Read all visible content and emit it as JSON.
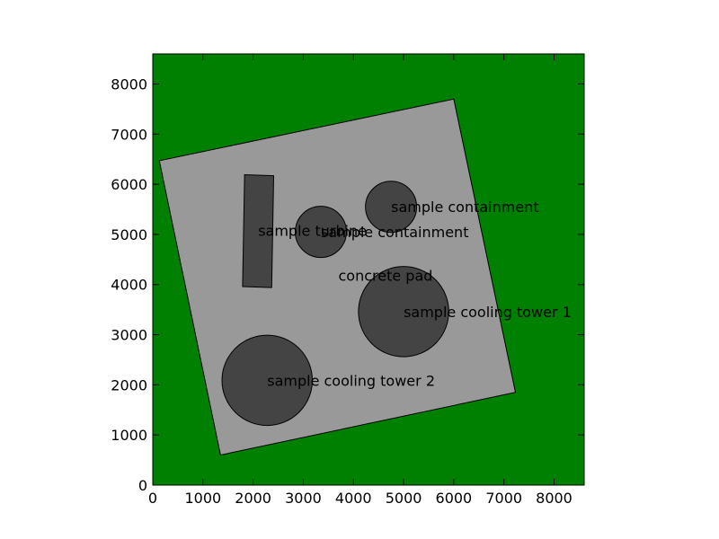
{
  "chart_data": {
    "type": "diagram",
    "xlim": [
      0,
      8600
    ],
    "ylim": [
      0,
      8600
    ],
    "x_ticks": [
      0,
      1000,
      2000,
      3000,
      4000,
      5000,
      6000,
      7000,
      8000
    ],
    "y_ticks": [
      0,
      1000,
      2000,
      3000,
      4000,
      5000,
      6000,
      7000,
      8000
    ],
    "x_tick_labels": [
      "0",
      "1000",
      "2000",
      "3000",
      "4000",
      "5000",
      "6000",
      "7000",
      "8000"
    ],
    "y_tick_labels": [
      "0",
      "1000",
      "2000",
      "3000",
      "4000",
      "5000",
      "6000",
      "7000",
      "8000"
    ],
    "colors": {
      "background": "#008000",
      "pad": "#999999",
      "equipment": "#444444",
      "outline": "#000000"
    },
    "pad": {
      "label": "concrete pad",
      "label_pos": [
        3700,
        4180
      ],
      "corners": [
        [
          130,
          6470
        ],
        [
          6000,
          7700
        ],
        [
          7230,
          1850
        ],
        [
          1350,
          600
        ]
      ]
    },
    "rectangles": [
      {
        "label": "sample turbine",
        "label_pos": [
          2100,
          5080
        ],
        "corners": [
          [
            1830,
            6190
          ],
          [
            2410,
            6170
          ],
          [
            2370,
            3940
          ],
          [
            1790,
            3960
          ]
        ]
      }
    ],
    "circles": [
      {
        "label": "sample containment",
        "center": [
          3350,
          5050
        ],
        "radius": 510,
        "label_pos": [
          3350,
          5050
        ]
      },
      {
        "label": "sample containment",
        "center": [
          4750,
          5550
        ],
        "radius": 510,
        "label_pos": [
          4750,
          5550
        ]
      },
      {
        "label": "sample cooling tower 1",
        "center": [
          5000,
          3460
        ],
        "radius": 900,
        "label_pos": [
          5000,
          3460
        ]
      },
      {
        "label": "sample cooling tower 2",
        "center": [
          2280,
          2090
        ],
        "radius": 900,
        "label_pos": [
          2280,
          2090
        ]
      }
    ]
  }
}
